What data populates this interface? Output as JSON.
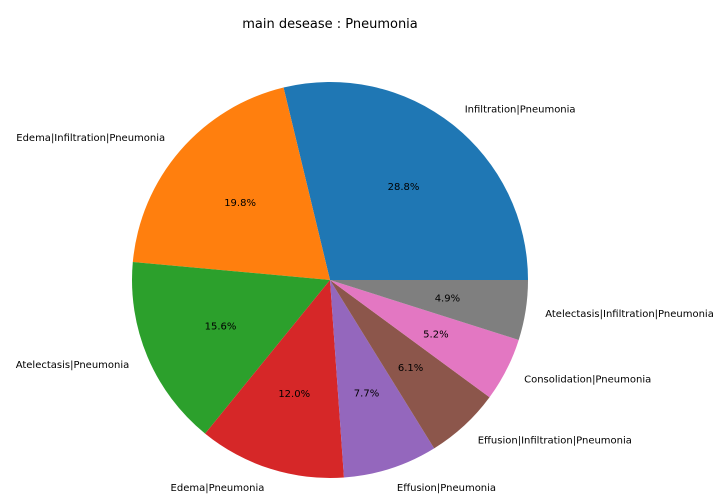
{
  "chart_data": {
    "type": "pie",
    "title": "main desease : Pneumonia",
    "start_angle_deg": 0,
    "direction": "counterclockwise",
    "slices": [
      {
        "label": "Infiltration|Pneumonia",
        "value": 28.8,
        "pct_label": "28.8%",
        "color": "#1f77b4"
      },
      {
        "label": "Edema|Infiltration|Pneumonia",
        "value": 19.8,
        "pct_label": "19.8%",
        "color": "#ff7f0e"
      },
      {
        "label": "Atelectasis|Pneumonia",
        "value": 15.6,
        "pct_label": "15.6%",
        "color": "#2ca02c"
      },
      {
        "label": "Edema|Pneumonia",
        "value": 12.0,
        "pct_label": "12.0%",
        "color": "#d62728"
      },
      {
        "label": "Effusion|Pneumonia",
        "value": 7.7,
        "pct_label": "7.7%",
        "color": "#9467bd"
      },
      {
        "label": "Effusion|Infiltration|Pneumonia",
        "value": 6.1,
        "pct_label": "6.1%",
        "color": "#8c564b"
      },
      {
        "label": "Consolidation|Pneumonia",
        "value": 5.2,
        "pct_label": "5.2%",
        "color": "#e377c2"
      },
      {
        "label": "Atelectasis|Infiltration|Pneumonia",
        "value": 4.9,
        "pct_label": "4.9%",
        "color": "#7f7f7f"
      }
    ]
  }
}
